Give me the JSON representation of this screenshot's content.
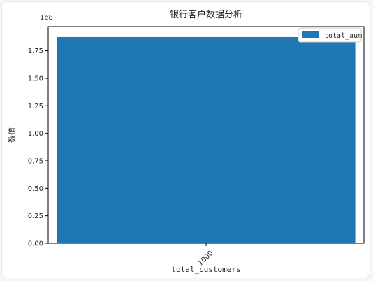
{
  "chart_data": {
    "type": "bar",
    "title": "银行客户数据分析",
    "xlabel": "total_customers",
    "ylabel": "数值",
    "categories": [
      "1000"
    ],
    "series": [
      {
        "name": "total_aum",
        "values": [
          187500000
        ],
        "color": "#1f77b4"
      }
    ],
    "ylim": [
      0,
      197000000
    ],
    "yticks": [
      0,
      25000000,
      50000000,
      75000000,
      100000000,
      125000000,
      150000000,
      175000000
    ],
    "ytick_labels": [
      "0.00",
      "0.25",
      "0.50",
      "0.75",
      "1.00",
      "1.25",
      "1.50",
      "1.75"
    ],
    "y_offset_label": "1e8",
    "xtick_rotation": 45,
    "grid": false,
    "legend_placement": "top-right"
  }
}
